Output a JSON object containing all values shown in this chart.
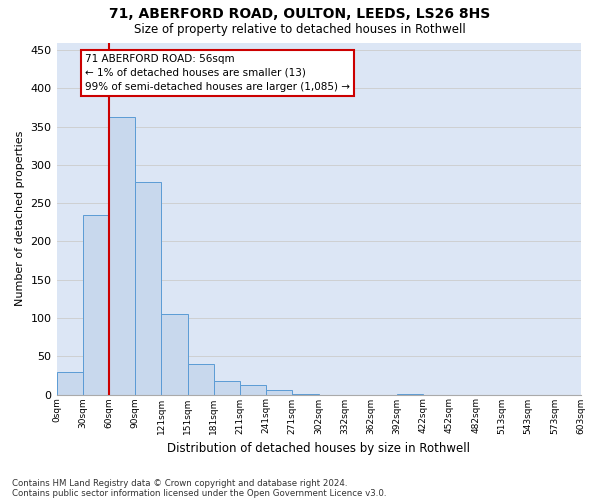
{
  "title1": "71, ABERFORD ROAD, OULTON, LEEDS, LS26 8HS",
  "title2": "Size of property relative to detached houses in Rothwell",
  "xlabel": "Distribution of detached houses by size in Rothwell",
  "ylabel": "Number of detached properties",
  "bar_values": [
    30,
    235,
    362,
    278,
    105,
    40,
    18,
    12,
    6,
    1,
    0,
    0,
    0,
    1,
    0,
    0,
    0,
    0,
    0,
    0
  ],
  "bar_color": "#c8d8ed",
  "bar_edge_color": "#5b9bd5",
  "x_labels": [
    "0sqm",
    "30sqm",
    "60sqm",
    "90sqm",
    "121sqm",
    "151sqm",
    "181sqm",
    "211sqm",
    "241sqm",
    "271sqm",
    "302sqm",
    "332sqm",
    "362sqm",
    "392sqm",
    "422sqm",
    "452sqm",
    "482sqm",
    "513sqm",
    "543sqm",
    "573sqm",
    "603sqm"
  ],
  "ylim": [
    0,
    460
  ],
  "yticks": [
    0,
    50,
    100,
    150,
    200,
    250,
    300,
    350,
    400,
    450
  ],
  "grid_color": "#cccccc",
  "annotation_text": "71 ABERFORD ROAD: 56sqm\n← 1% of detached houses are smaller (13)\n99% of semi-detached houses are larger (1,085) →",
  "annotation_box_color": "#ffffff",
  "annotation_box_edge": "#cc0000",
  "red_line_x": 1.5,
  "footnote1": "Contains HM Land Registry data © Crown copyright and database right 2024.",
  "footnote2": "Contains public sector information licensed under the Open Government Licence v3.0.",
  "bg_color": "#ffffff",
  "plot_bg_color": "#dce6f5"
}
